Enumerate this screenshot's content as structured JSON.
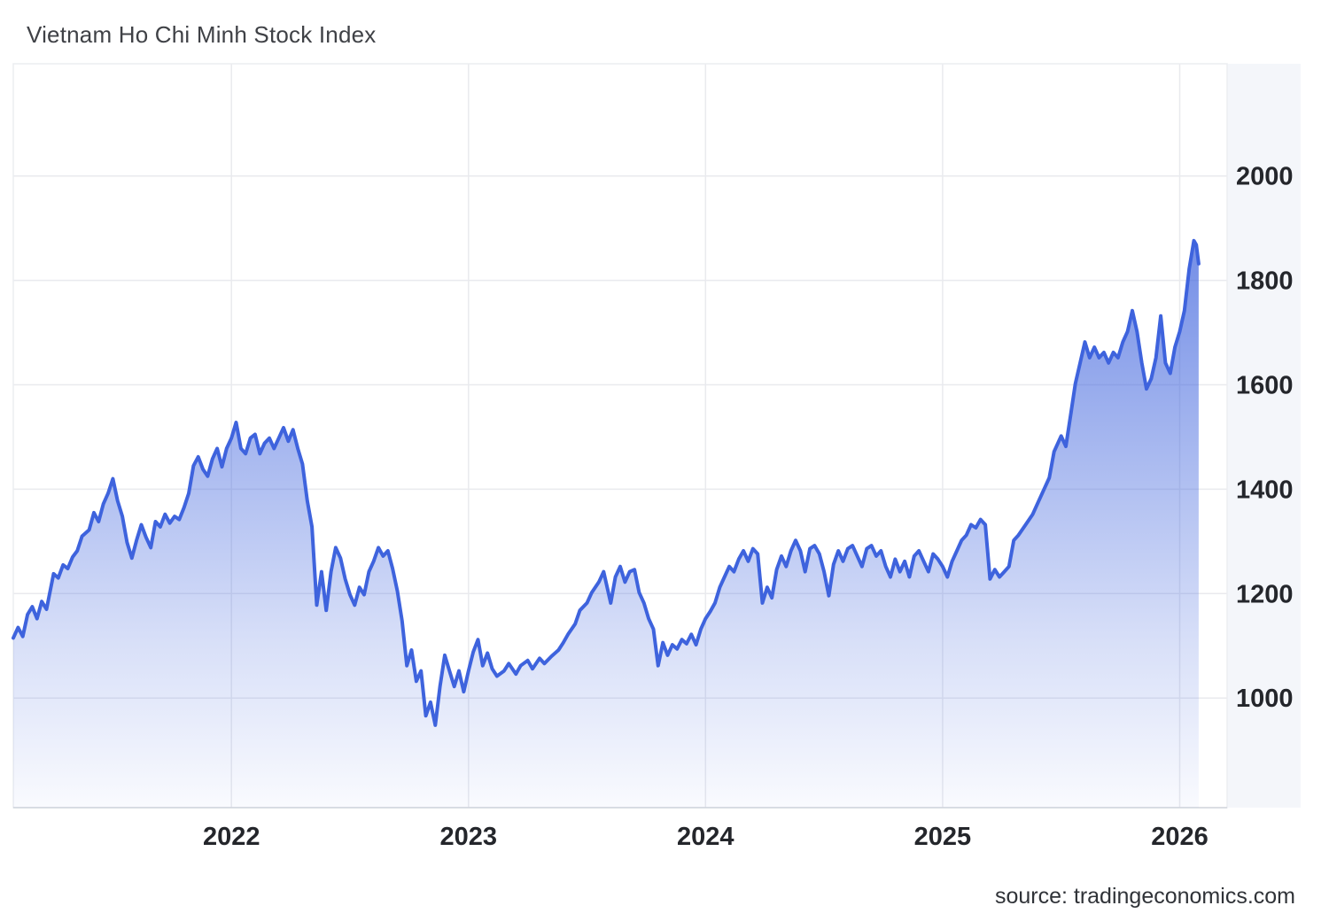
{
  "chart_data": {
    "type": "area",
    "title": "Vietnam Ho Chi Minh Stock Index",
    "source_label": "source: tradingeconomics.com",
    "legend": "none",
    "grid": true,
    "y_axis_side": "right",
    "x_encoding": "decimal_year",
    "xlim": [
      2021.08,
      2026.2
    ],
    "ylim": [
      790,
      2215
    ],
    "x_ticks": [
      2022,
      2023,
      2024,
      2025,
      2026
    ],
    "x_tick_labels": [
      "2022",
      "2023",
      "2024",
      "2025",
      "2026"
    ],
    "y_ticks": [
      1000,
      1200,
      1400,
      1600,
      1800,
      2000
    ],
    "colors": {
      "line": "#3E63DD",
      "area": "#3E63DD",
      "grid": "#e9eaee",
      "plot_border": "#ecedf1",
      "axis_line": "#d2d5dc",
      "axis_band": "#f4f6fa",
      "tick_text": "#24262b",
      "title_text": "#3f4146",
      "background": "#ffffff"
    },
    "series": [
      {
        "name": "Vietnam Ho Chi Minh Stock Index",
        "points": [
          [
            2021.08,
            1115
          ],
          [
            2021.1,
            1135
          ],
          [
            2021.12,
            1118
          ],
          [
            2021.14,
            1160
          ],
          [
            2021.16,
            1175
          ],
          [
            2021.18,
            1152
          ],
          [
            2021.2,
            1185
          ],
          [
            2021.22,
            1170
          ],
          [
            2021.25,
            1238
          ],
          [
            2021.27,
            1230
          ],
          [
            2021.29,
            1255
          ],
          [
            2021.31,
            1248
          ],
          [
            2021.33,
            1270
          ],
          [
            2021.35,
            1282
          ],
          [
            2021.37,
            1310
          ],
          [
            2021.4,
            1322
          ],
          [
            2021.42,
            1355
          ],
          [
            2021.44,
            1338
          ],
          [
            2021.46,
            1372
          ],
          [
            2021.48,
            1392
          ],
          [
            2021.5,
            1420
          ],
          [
            2021.52,
            1378
          ],
          [
            2021.54,
            1348
          ],
          [
            2021.56,
            1298
          ],
          [
            2021.58,
            1268
          ],
          [
            2021.6,
            1302
          ],
          [
            2021.62,
            1332
          ],
          [
            2021.64,
            1308
          ],
          [
            2021.66,
            1288
          ],
          [
            2021.68,
            1338
          ],
          [
            2021.7,
            1328
          ],
          [
            2021.72,
            1352
          ],
          [
            2021.74,
            1335
          ],
          [
            2021.76,
            1348
          ],
          [
            2021.78,
            1342
          ],
          [
            2021.8,
            1365
          ],
          [
            2021.82,
            1392
          ],
          [
            2021.84,
            1445
          ],
          [
            2021.86,
            1462
          ],
          [
            2021.88,
            1438
          ],
          [
            2021.9,
            1425
          ],
          [
            2021.92,
            1458
          ],
          [
            2021.94,
            1478
          ],
          [
            2021.96,
            1443
          ],
          [
            2021.98,
            1478
          ],
          [
            2022.0,
            1498
          ],
          [
            2022.02,
            1528
          ],
          [
            2022.04,
            1478
          ],
          [
            2022.06,
            1468
          ],
          [
            2022.08,
            1498
          ],
          [
            2022.1,
            1505
          ],
          [
            2022.12,
            1468
          ],
          [
            2022.14,
            1488
          ],
          [
            2022.16,
            1498
          ],
          [
            2022.18,
            1478
          ],
          [
            2022.2,
            1498
          ],
          [
            2022.22,
            1518
          ],
          [
            2022.24,
            1492
          ],
          [
            2022.26,
            1514
          ],
          [
            2022.28,
            1478
          ],
          [
            2022.3,
            1448
          ],
          [
            2022.32,
            1378
          ],
          [
            2022.34,
            1328
          ],
          [
            2022.36,
            1178
          ],
          [
            2022.38,
            1242
          ],
          [
            2022.4,
            1168
          ],
          [
            2022.42,
            1242
          ],
          [
            2022.44,
            1288
          ],
          [
            2022.46,
            1268
          ],
          [
            2022.48,
            1228
          ],
          [
            2022.5,
            1198
          ],
          [
            2022.52,
            1178
          ],
          [
            2022.54,
            1212
          ],
          [
            2022.56,
            1198
          ],
          [
            2022.58,
            1242
          ],
          [
            2022.6,
            1262
          ],
          [
            2022.62,
            1288
          ],
          [
            2022.64,
            1272
          ],
          [
            2022.66,
            1282
          ],
          [
            2022.68,
            1248
          ],
          [
            2022.7,
            1205
          ],
          [
            2022.72,
            1148
          ],
          [
            2022.74,
            1062
          ],
          [
            2022.76,
            1092
          ],
          [
            2022.78,
            1032
          ],
          [
            2022.8,
            1052
          ],
          [
            2022.82,
            966
          ],
          [
            2022.84,
            992
          ],
          [
            2022.86,
            948
          ],
          [
            2022.88,
            1022
          ],
          [
            2022.9,
            1082
          ],
          [
            2022.92,
            1052
          ],
          [
            2022.94,
            1022
          ],
          [
            2022.96,
            1052
          ],
          [
            2022.98,
            1012
          ],
          [
            2023.0,
            1052
          ],
          [
            2023.02,
            1088
          ],
          [
            2023.04,
            1112
          ],
          [
            2023.06,
            1062
          ],
          [
            2023.08,
            1086
          ],
          [
            2023.1,
            1056
          ],
          [
            2023.12,
            1042
          ],
          [
            2023.15,
            1052
          ],
          [
            2023.17,
            1066
          ],
          [
            2023.2,
            1046
          ],
          [
            2023.22,
            1062
          ],
          [
            2023.25,
            1072
          ],
          [
            2023.27,
            1056
          ],
          [
            2023.3,
            1076
          ],
          [
            2023.32,
            1066
          ],
          [
            2023.35,
            1080
          ],
          [
            2023.38,
            1092
          ],
          [
            2023.4,
            1106
          ],
          [
            2023.42,
            1122
          ],
          [
            2023.45,
            1142
          ],
          [
            2023.47,
            1168
          ],
          [
            2023.5,
            1182
          ],
          [
            2023.52,
            1202
          ],
          [
            2023.55,
            1222
          ],
          [
            2023.57,
            1242
          ],
          [
            2023.6,
            1182
          ],
          [
            2023.62,
            1232
          ],
          [
            2023.64,
            1252
          ],
          [
            2023.66,
            1222
          ],
          [
            2023.68,
            1242
          ],
          [
            2023.7,
            1246
          ],
          [
            2023.72,
            1202
          ],
          [
            2023.74,
            1182
          ],
          [
            2023.76,
            1152
          ],
          [
            2023.78,
            1132
          ],
          [
            2023.8,
            1062
          ],
          [
            2023.82,
            1106
          ],
          [
            2023.84,
            1082
          ],
          [
            2023.86,
            1102
          ],
          [
            2023.88,
            1094
          ],
          [
            2023.9,
            1112
          ],
          [
            2023.92,
            1104
          ],
          [
            2023.94,
            1122
          ],
          [
            2023.96,
            1102
          ],
          [
            2023.98,
            1132
          ],
          [
            2024.0,
            1152
          ],
          [
            2024.02,
            1166
          ],
          [
            2024.04,
            1182
          ],
          [
            2024.06,
            1212
          ],
          [
            2024.08,
            1232
          ],
          [
            2024.1,
            1252
          ],
          [
            2024.12,
            1242
          ],
          [
            2024.14,
            1266
          ],
          [
            2024.16,
            1282
          ],
          [
            2024.18,
            1262
          ],
          [
            2024.2,
            1286
          ],
          [
            2024.22,
            1276
          ],
          [
            2024.24,
            1182
          ],
          [
            2024.26,
            1212
          ],
          [
            2024.28,
            1192
          ],
          [
            2024.3,
            1246
          ],
          [
            2024.32,
            1272
          ],
          [
            2024.34,
            1252
          ],
          [
            2024.36,
            1282
          ],
          [
            2024.38,
            1302
          ],
          [
            2024.4,
            1282
          ],
          [
            2024.42,
            1242
          ],
          [
            2024.44,
            1286
          ],
          [
            2024.46,
            1292
          ],
          [
            2024.48,
            1276
          ],
          [
            2024.5,
            1242
          ],
          [
            2024.52,
            1196
          ],
          [
            2024.54,
            1256
          ],
          [
            2024.56,
            1282
          ],
          [
            2024.58,
            1262
          ],
          [
            2024.6,
            1286
          ],
          [
            2024.62,
            1292
          ],
          [
            2024.64,
            1272
          ],
          [
            2024.66,
            1252
          ],
          [
            2024.68,
            1286
          ],
          [
            2024.7,
            1292
          ],
          [
            2024.72,
            1272
          ],
          [
            2024.74,
            1282
          ],
          [
            2024.76,
            1252
          ],
          [
            2024.78,
            1232
          ],
          [
            2024.8,
            1266
          ],
          [
            2024.82,
            1242
          ],
          [
            2024.84,
            1262
          ],
          [
            2024.86,
            1232
          ],
          [
            2024.88,
            1272
          ],
          [
            2024.9,
            1282
          ],
          [
            2024.92,
            1262
          ],
          [
            2024.94,
            1242
          ],
          [
            2024.96,
            1276
          ],
          [
            2024.98,
            1266
          ],
          [
            2025.0,
            1252
          ],
          [
            2025.02,
            1232
          ],
          [
            2025.04,
            1262
          ],
          [
            2025.06,
            1282
          ],
          [
            2025.08,
            1302
          ],
          [
            2025.1,
            1312
          ],
          [
            2025.12,
            1332
          ],
          [
            2025.14,
            1326
          ],
          [
            2025.16,
            1342
          ],
          [
            2025.18,
            1332
          ],
          [
            2025.2,
            1228
          ],
          [
            2025.22,
            1246
          ],
          [
            2025.24,
            1232
          ],
          [
            2025.26,
            1242
          ],
          [
            2025.28,
            1252
          ],
          [
            2025.3,
            1302
          ],
          [
            2025.32,
            1312
          ],
          [
            2025.35,
            1332
          ],
          [
            2025.38,
            1352
          ],
          [
            2025.4,
            1372
          ],
          [
            2025.42,
            1392
          ],
          [
            2025.45,
            1422
          ],
          [
            2025.47,
            1472
          ],
          [
            2025.5,
            1502
          ],
          [
            2025.52,
            1482
          ],
          [
            2025.54,
            1542
          ],
          [
            2025.56,
            1602
          ],
          [
            2025.58,
            1642
          ],
          [
            2025.6,
            1682
          ],
          [
            2025.62,
            1652
          ],
          [
            2025.64,
            1672
          ],
          [
            2025.66,
            1652
          ],
          [
            2025.68,
            1662
          ],
          [
            2025.7,
            1642
          ],
          [
            2025.72,
            1662
          ],
          [
            2025.74,
            1652
          ],
          [
            2025.76,
            1682
          ],
          [
            2025.78,
            1702
          ],
          [
            2025.8,
            1742
          ],
          [
            2025.82,
            1702
          ],
          [
            2025.84,
            1642
          ],
          [
            2025.86,
            1592
          ],
          [
            2025.88,
            1612
          ],
          [
            2025.9,
            1652
          ],
          [
            2025.92,
            1732
          ],
          [
            2025.94,
            1642
          ],
          [
            2025.96,
            1622
          ],
          [
            2025.98,
            1672
          ],
          [
            2026.0,
            1702
          ],
          [
            2026.02,
            1742
          ],
          [
            2026.04,
            1822
          ],
          [
            2026.06,
            1876
          ],
          [
            2026.07,
            1868
          ],
          [
            2026.08,
            1832
          ]
        ]
      }
    ]
  }
}
